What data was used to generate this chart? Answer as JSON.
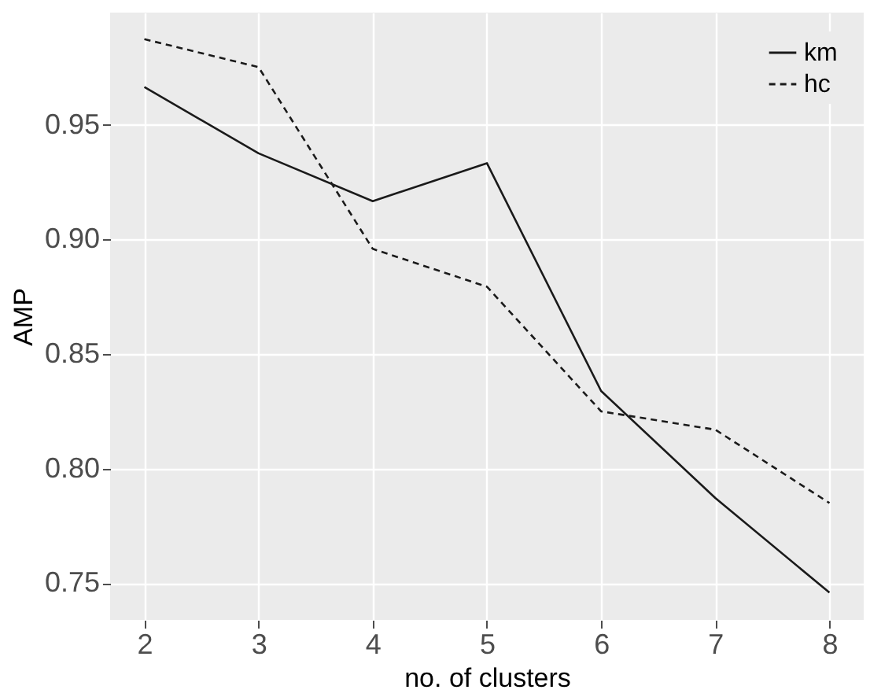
{
  "chart_data": {
    "type": "line",
    "xlabel": "no. of clusters",
    "ylabel": "AMP",
    "x": [
      2,
      3,
      4,
      5,
      6,
      7,
      8
    ],
    "series": [
      {
        "name": "km",
        "color": "#1a1a1a",
        "line_style": "solid",
        "values": [
          0.9665,
          0.9376,
          0.9167,
          0.9333,
          0.8339,
          0.7872,
          0.7459
        ]
      },
      {
        "name": "hc",
        "color": "#1a1a1a",
        "line_style": "dashed",
        "values": [
          0.9874,
          0.9752,
          0.8959,
          0.8794,
          0.825,
          0.817,
          0.785
        ]
      }
    ],
    "xlim": [
      1.7,
      8.3
    ],
    "ylim": [
      0.734,
      0.999
    ],
    "xticks": [
      2,
      3,
      4,
      5,
      6,
      7,
      8
    ],
    "yticks": [
      {
        "value": 0.75,
        "label": "0.75"
      },
      {
        "value": 0.8,
        "label": "0.80"
      },
      {
        "value": 0.85,
        "label": "0.85"
      },
      {
        "value": 0.9,
        "label": "0.90"
      },
      {
        "value": 0.95,
        "label": "0.95"
      }
    ],
    "grid": true,
    "legend": "top right",
    "marker": "none"
  }
}
